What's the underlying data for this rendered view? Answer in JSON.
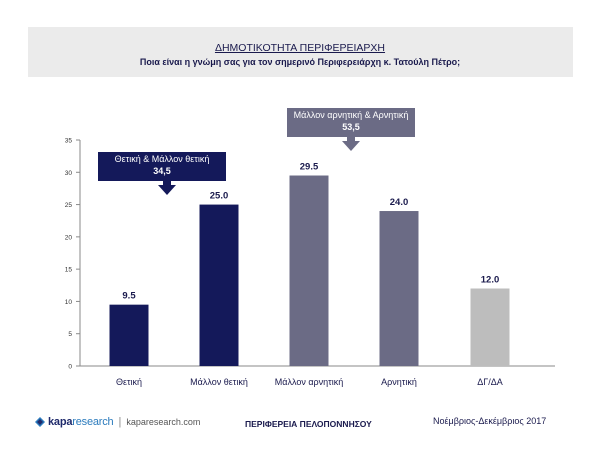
{
  "header": {
    "title": "ΔΗΜΟΤΙΚΟΤΗΤΑ ΠΕΡΙΦΕΡΕΙΑΡΧΗ",
    "subtitle": "Ποια είναι η γνώμη σας για τον σημερινό Περιφερειάρχη κ. Τατούλη Πέτρο;"
  },
  "chart_data": {
    "type": "bar",
    "categories": [
      "Θετική",
      "Μάλλον θετική",
      "Μάλλον αρνητική",
      "Αρνητική",
      "ΔΓ/ΔΑ"
    ],
    "values": [
      9.5,
      25.0,
      29.5,
      24.0,
      12.0
    ],
    "value_labels": [
      "9.5",
      "25.0",
      "29.5",
      "24.0",
      "12.0"
    ],
    "bar_colors": [
      "#14195a",
      "#14195a",
      "#6b6b85",
      "#6b6b85",
      "#bdbdbd"
    ],
    "ylim": [
      0,
      35
    ],
    "yticks": [
      0,
      5,
      10,
      15,
      20,
      25,
      30,
      35
    ],
    "grid": false,
    "annotations": [
      {
        "label": "Θετική & Μάλλον θετική",
        "value": "34,5",
        "color": "#14195a"
      },
      {
        "label": "Μάλλον αρνητική & Αρνητική",
        "value": "53,5",
        "color": "#6b6b85"
      }
    ]
  },
  "footer": {
    "brand_main": "kapa",
    "brand_accent": "research",
    "site": "kaparesearch.com",
    "region": "ΠΕΡΙΦΕΡΕΙΑ ΠΕΛΟΠΟΝΝΗΣΟΥ",
    "date": "Νοέμβριος-Δεκέμβριος 2017"
  }
}
